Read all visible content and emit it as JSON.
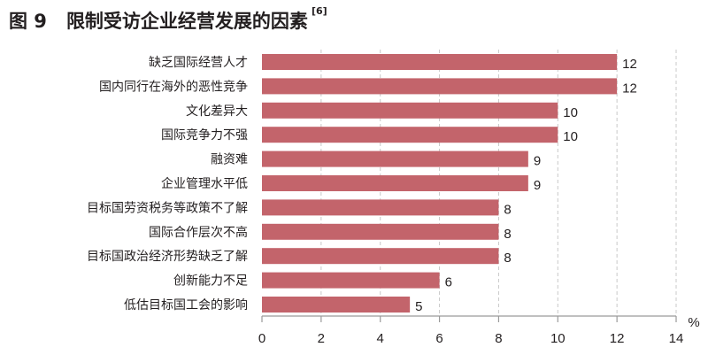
{
  "chart_data": {
    "type": "bar",
    "orientation": "horizontal",
    "title_prefix": "图 9",
    "title": "限制受访企业经营发展的因素",
    "title_ref": "[6]",
    "categories": [
      "缺乏国际经营人才",
      "国内同行在海外的恶性竞争",
      "文化差异大",
      "国际竞争力不强",
      "融资难",
      "企业管理水平低",
      "目标国劳资税务等政策不了解",
      "国际合作层次不高",
      "目标国政治经济形势缺乏了解",
      "创新能力不足",
      "低估目标国工会的影响"
    ],
    "values": [
      12,
      12,
      10,
      10,
      9,
      9,
      8,
      8,
      8,
      6,
      5
    ],
    "xlim": [
      0,
      14
    ],
    "xticks": [
      0,
      2,
      4,
      6,
      8,
      10,
      12,
      14
    ],
    "xunit": "%",
    "grid": true,
    "bar_color": "#c3646b"
  }
}
